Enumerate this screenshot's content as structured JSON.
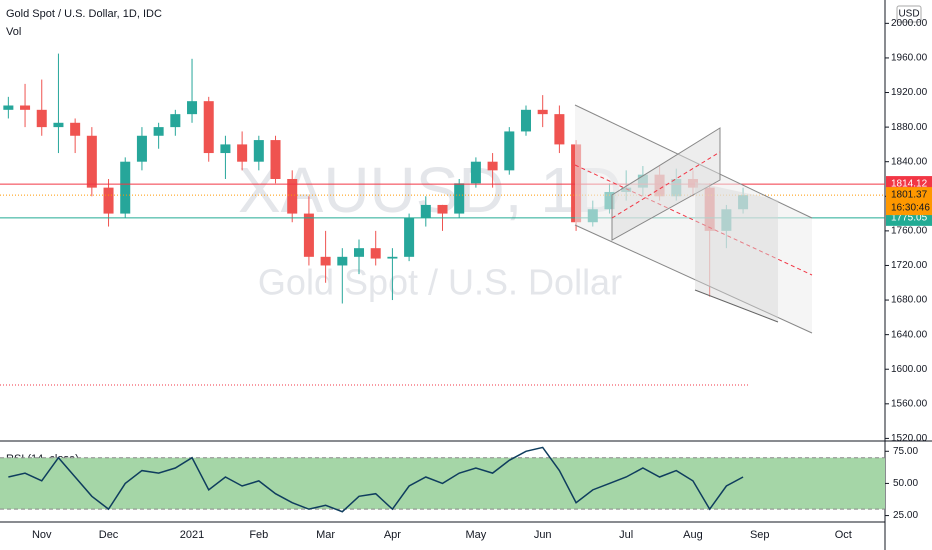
{
  "chart_data": [
    {
      "type": "candlestick",
      "title": "Gold Spot / U.S. Dollar, 1D, IDC",
      "subtitle": "Vol",
      "watermark": "XAUUSD, 1D",
      "watermark_subtitle": "Gold Spot / U.S. Dollar",
      "currency": "USD",
      "categories": [
        null,
        null,
        "Nov",
        null,
        null,
        null,
        "Dec",
        null,
        null,
        null,
        null,
        "2021",
        null,
        null,
        null,
        "Feb",
        null,
        null,
        null,
        "Mar",
        null,
        null,
        null,
        "Apr",
        null,
        null,
        null,
        null,
        "May",
        null,
        null,
        null,
        "Jun",
        null,
        null,
        null,
        null,
        "Jul",
        null,
        null,
        null,
        "Aug",
        null,
        null,
        null,
        "Sep",
        null,
        null,
        null,
        null,
        "Oct",
        null,
        null
      ],
      "open": [
        1900,
        1905,
        1900,
        1880,
        1885,
        1870,
        1810,
        1780,
        1840,
        1870,
        1880,
        1895,
        1910,
        1850,
        1860,
        1840,
        1865,
        1820,
        1780,
        1730,
        1720,
        1730,
        1740,
        1728,
        1730,
        1775,
        1790,
        1780,
        1815,
        1840,
        1830,
        1875,
        1900,
        1895,
        1860,
        1770,
        1785,
        1805,
        1810,
        1825,
        1800,
        1820,
        1810,
        1760,
        1785,
        null,
        null,
        null,
        null,
        null,
        null,
        null,
        null
      ],
      "high": [
        1915,
        1930,
        1935,
        1965,
        1890,
        1880,
        1820,
        1845,
        1880,
        1885,
        1900,
        1959,
        1915,
        1870,
        1875,
        1870,
        1870,
        1830,
        1800,
        1760,
        1740,
        1750,
        1760,
        1740,
        1780,
        1800,
        1790,
        1820,
        1845,
        1850,
        1880,
        1905,
        1917,
        1905,
        1865,
        1795,
        1815,
        1830,
        1835,
        1835,
        1832,
        1830,
        1815,
        1790,
        1810,
        null,
        null,
        null,
        null,
        null,
        null,
        null,
        null
      ],
      "low": [
        1890,
        1880,
        1870,
        1850,
        1850,
        1800,
        1765,
        1775,
        1830,
        1855,
        1870,
        1885,
        1840,
        1820,
        1830,
        1830,
        1815,
        1770,
        1720,
        1700,
        1676,
        1710,
        1720,
        1680,
        1725,
        1765,
        1760,
        1775,
        1810,
        1810,
        1825,
        1870,
        1880,
        1850,
        1760,
        1765,
        1780,
        1795,
        1800,
        1795,
        1795,
        1800,
        1684,
        1740,
        1780,
        null,
        null,
        null,
        null,
        null,
        null,
        null,
        null
      ],
      "close": [
        1905,
        1900,
        1880,
        1885,
        1870,
        1810,
        1780,
        1840,
        1870,
        1880,
        1895,
        1910,
        1850,
        1860,
        1840,
        1865,
        1820,
        1780,
        1730,
        1720,
        1730,
        1740,
        1728,
        1730,
        1775,
        1790,
        1780,
        1815,
        1840,
        1830,
        1875,
        1900,
        1895,
        1860,
        1770,
        1785,
        1805,
        1810,
        1825,
        1800,
        1820,
        1810,
        1760,
        1785,
        1801.37,
        null,
        null,
        null,
        null,
        null,
        null,
        null,
        null
      ],
      "up_color": "#26a69a",
      "down_color": "#ef5350",
      "ylim": [
        1517,
        2027
      ],
      "yticks": [
        {
          "value": 1520,
          "label": "1520.00"
        },
        {
          "value": 1560,
          "label": "1560.00"
        },
        {
          "value": 1600,
          "label": "1600.00"
        },
        {
          "value": 1640,
          "label": "1640.00"
        },
        {
          "value": 1680,
          "label": "1680.00"
        },
        {
          "value": 1720,
          "label": "1720.00"
        },
        {
          "value": 1760,
          "label": "1760.00"
        },
        {
          "value": 1800,
          "label": "1800.00"
        },
        {
          "value": 1840,
          "label": "1840.00"
        },
        {
          "value": 1880,
          "label": "1880.00"
        },
        {
          "value": 1920,
          "label": "1920.00"
        },
        {
          "value": 1960,
          "label": "1960.00"
        },
        {
          "value": 2000,
          "label": "2000.00"
        }
      ],
      "price_lines": [
        {
          "value": 1814.12,
          "color": "#f23645"
        },
        {
          "value": 1775.05,
          "color": "#22ab94"
        }
      ],
      "countdown": "16:30:46",
      "last_price_color": "#ff9800"
    },
    {
      "type": "line",
      "title": "RSI (14, close)",
      "values": [
        55,
        58,
        52,
        70,
        55,
        40,
        30,
        50,
        60,
        58,
        62,
        70,
        45,
        55,
        48,
        52,
        42,
        35,
        30,
        33,
        28,
        40,
        42,
        30,
        48,
        55,
        50,
        58,
        62,
        58,
        68,
        75,
        78,
        60,
        35,
        45,
        50,
        55,
        62,
        55,
        60,
        52,
        30,
        48,
        55,
        null,
        null,
        null,
        null,
        null,
        null,
        null,
        null
      ],
      "color": "#0f3d5e",
      "band": [
        30,
        70
      ],
      "band_color": "#a5d6a7",
      "ylim": [
        20,
        83
      ],
      "yticks": [
        {
          "value": 25,
          "label": "25.00"
        },
        {
          "value": 50,
          "label": "50.00"
        },
        {
          "value": 75,
          "label": "75.00"
        }
      ]
    }
  ]
}
